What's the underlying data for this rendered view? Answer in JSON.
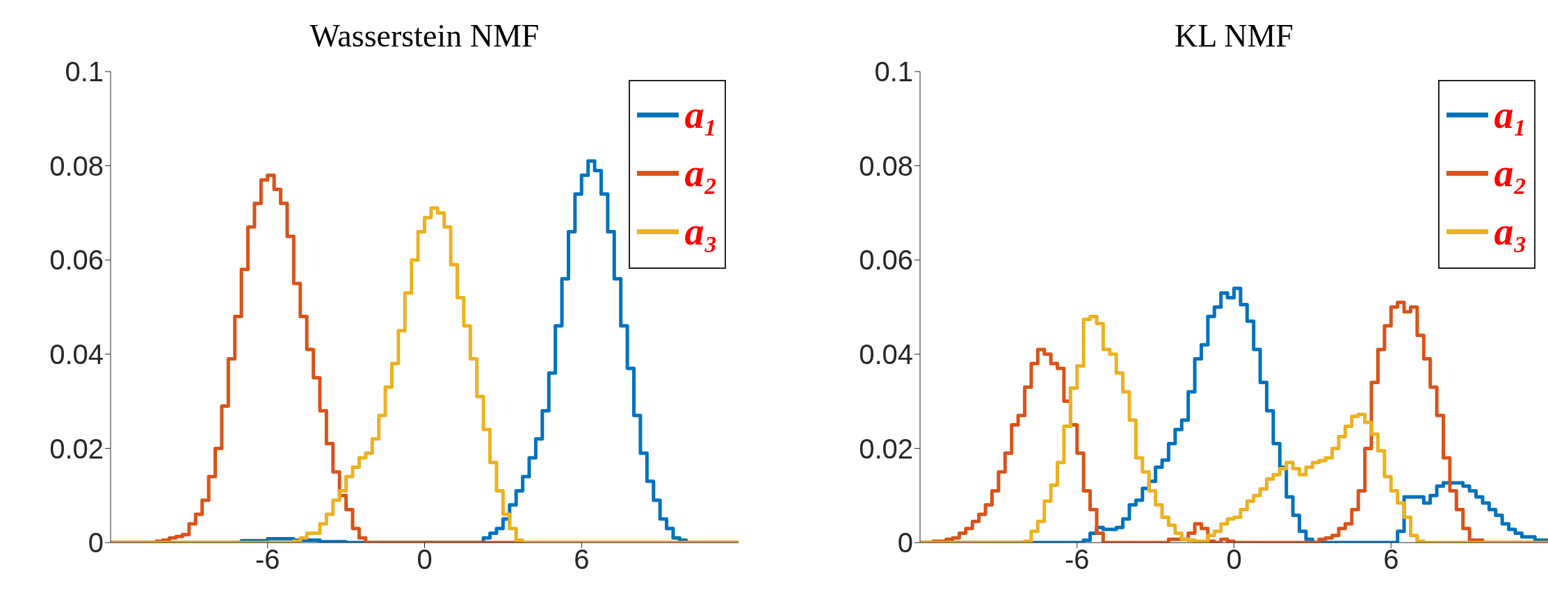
{
  "chart_data": [
    {
      "type": "step",
      "title": "Wasserstein NMF",
      "xlim": [
        -12,
        12
      ],
      "xticks": [
        -6,
        0,
        6
      ],
      "ylim": [
        0,
        0.1
      ],
      "yticks": [
        0,
        0.02,
        0.04,
        0.06,
        0.08,
        0.1
      ],
      "grid": false,
      "legend": "top right",
      "series": [
        {
          "name": "a₁",
          "color": "#0072bd",
          "x": [
            -12,
            -8,
            -7,
            -6,
            -5,
            -4,
            -3,
            2.25,
            2.5,
            2.75,
            3,
            3.25,
            3.5,
            3.75,
            4,
            4.25,
            4.5,
            4.75,
            5,
            5.25,
            5.5,
            5.75,
            6,
            6.25,
            6.5,
            6.75,
            7,
            7.25,
            7.5,
            7.75,
            8,
            8.25,
            8.5,
            8.75,
            9,
            9.25,
            9.5,
            9.75,
            10,
            12
          ],
          "values": [
            0,
            0,
            0.0004,
            0.0008,
            0.0005,
            0.0002,
            0,
            0.001,
            0.002,
            0.003,
            0.005,
            0.008,
            0.011,
            0.014,
            0.018,
            0.022,
            0.028,
            0.036,
            0.046,
            0.056,
            0.066,
            0.074,
            0.078,
            0.081,
            0.079,
            0.074,
            0.066,
            0.056,
            0.046,
            0.037,
            0.027,
            0.019,
            0.013,
            0.009,
            0.005,
            0.003,
            0.001,
            0.0005,
            0,
            0
          ]
        },
        {
          "name": "a₂",
          "color": "#d95319",
          "x": [
            -12,
            -10.25,
            -10,
            -9.75,
            -9.5,
            -9.25,
            -9,
            -8.75,
            -8.5,
            -8.25,
            -8,
            -7.75,
            -7.5,
            -7.25,
            -7,
            -6.75,
            -6.5,
            -6.25,
            -6,
            -5.75,
            -5.5,
            -5.25,
            -5,
            -4.75,
            -4.5,
            -4.25,
            -4,
            -3.75,
            -3.5,
            -3.25,
            -3,
            -2.75,
            -2.5,
            -2.25,
            12
          ],
          "values": [
            0,
            0.0003,
            0.0005,
            0.001,
            0.0013,
            0.0017,
            0.004,
            0.006,
            0.009,
            0.014,
            0.02,
            0.029,
            0.039,
            0.048,
            0.058,
            0.067,
            0.072,
            0.077,
            0.078,
            0.075,
            0.072,
            0.065,
            0.055,
            0.048,
            0.041,
            0.035,
            0.028,
            0.021,
            0.015,
            0.01,
            0.007,
            0.003,
            0.001,
            0,
            0
          ]
        },
        {
          "name": "a₃",
          "color": "#edb120",
          "x": [
            -12,
            -5,
            -4.75,
            -4.5,
            -4.25,
            -4,
            -3.75,
            -3.5,
            -3.25,
            -3,
            -2.75,
            -2.5,
            -2.25,
            -2,
            -1.75,
            -1.5,
            -1.25,
            -1,
            -0.75,
            -0.5,
            -0.25,
            0,
            0.25,
            0.5,
            0.75,
            1,
            1.25,
            1.5,
            1.75,
            2,
            2.25,
            2.5,
            2.75,
            3,
            3.25,
            3.5,
            3.75,
            12
          ],
          "values": [
            0,
            0.0003,
            0.001,
            0.002,
            0.002,
            0.004,
            0.006,
            0.009,
            0.011,
            0.014,
            0.016,
            0.018,
            0.019,
            0.022,
            0.027,
            0.033,
            0.038,
            0.045,
            0.053,
            0.06,
            0.066,
            0.069,
            0.071,
            0.07,
            0.067,
            0.059,
            0.052,
            0.046,
            0.039,
            0.031,
            0.024,
            0.017,
            0.011,
            0.006,
            0.003,
            0.0005,
            0,
            0
          ]
        }
      ]
    },
    {
      "type": "step",
      "title": "KL NMF",
      "xlim": [
        -12,
        12
      ],
      "xticks": [
        -6,
        0,
        6
      ],
      "ylim": [
        0,
        0.1
      ],
      "yticks": [
        0,
        0.02,
        0.04,
        0.06,
        0.08,
        0.1
      ],
      "grid": false,
      "legend": "top right",
      "series": [
        {
          "name": "a₁",
          "color": "#0072bd",
          "x": [
            -12,
            -5.75,
            -5.5,
            -5.25,
            -5,
            -4.75,
            -4.5,
            -4.25,
            -4,
            -3.75,
            -3.5,
            -3.25,
            -3,
            -2.75,
            -2.5,
            -2.25,
            -2,
            -1.75,
            -1.5,
            -1.25,
            -1,
            -0.75,
            -0.5,
            -0.25,
            0,
            0.25,
            0.5,
            0.75,
            1,
            1.25,
            1.5,
            1.75,
            2,
            2.25,
            2.5,
            2.75,
            3,
            6,
            6.25,
            6.5,
            6.75,
            7,
            7.25,
            7.5,
            7.75,
            8,
            8.25,
            8.5,
            8.75,
            9,
            9.25,
            9.5,
            9.75,
            10,
            10.25,
            10.5,
            10.75,
            11,
            11.5,
            12
          ],
          "values": [
            0,
            0.0005,
            0.002,
            0.0032,
            0.0028,
            0.0028,
            0.0032,
            0.005,
            0.008,
            0.009,
            0.0115,
            0.013,
            0.016,
            0.0175,
            0.021,
            0.024,
            0.026,
            0.032,
            0.039,
            0.042,
            0.048,
            0.05,
            0.053,
            0.052,
            0.054,
            0.0505,
            0.047,
            0.041,
            0.034,
            0.028,
            0.021,
            0.016,
            0.0097,
            0.0058,
            0.0024,
            0.0007,
            0,
            0,
            0.0024,
            0.0097,
            0.0097,
            0.0097,
            0.0084,
            0.01,
            0.012,
            0.0127,
            0.0127,
            0.0127,
            0.012,
            0.011,
            0.0097,
            0.0084,
            0.007,
            0.0058,
            0.004,
            0.0028,
            0.002,
            0.0012,
            0.0005,
            0
          ]
        },
        {
          "name": "a₂",
          "color": "#d95319",
          "x": [
            -12,
            -11.5,
            -11,
            -10.75,
            -10.5,
            -10.25,
            -10,
            -9.75,
            -9.5,
            -9.25,
            -9,
            -8.75,
            -8.5,
            -8.25,
            -8,
            -7.75,
            -7.5,
            -7.25,
            -7,
            -6.75,
            -6.5,
            -6.25,
            -6,
            -5.75,
            -5.5,
            -5.25,
            -5,
            -2.75,
            -2.5,
            -2,
            -1.75,
            -1.5,
            -1.25,
            -1,
            -0.75,
            -0.5,
            -0.25,
            0,
            3,
            3.25,
            3.5,
            3.75,
            4,
            4.25,
            4.5,
            4.75,
            5,
            5.25,
            5.5,
            5.75,
            6,
            6.25,
            6.5,
            6.75,
            7,
            7.25,
            7.5,
            7.75,
            8,
            8.25,
            8.5,
            8.75,
            9,
            9.5,
            12
          ],
          "values": [
            0,
            0.0003,
            0.0007,
            0.001,
            0.002,
            0.003,
            0.0045,
            0.006,
            0.008,
            0.011,
            0.015,
            0.019,
            0.025,
            0.027,
            0.033,
            0.038,
            0.041,
            0.04,
            0.038,
            0.037,
            0.03,
            0.025,
            0.019,
            0.011,
            0.007,
            0.002,
            0,
            0,
            0.0007,
            0.0007,
            0.002,
            0.004,
            0.003,
            0.0003,
            0,
            0.0007,
            0.0003,
            0,
            0,
            0.0007,
            0.001,
            0.0015,
            0.003,
            0.004,
            0.007,
            0.011,
            0.02,
            0.034,
            0.041,
            0.046,
            0.05,
            0.051,
            0.049,
            0.05,
            0.044,
            0.039,
            0.033,
            0.027,
            0.018,
            0.011,
            0.007,
            0.003,
            0.0005,
            0,
            0
          ]
        },
        {
          "name": "a₃",
          "color": "#edb120",
          "x": [
            -12,
            -8,
            -7.75,
            -7.5,
            -7.25,
            -7,
            -6.75,
            -6.5,
            -6.25,
            -6,
            -5.75,
            -5.5,
            -5.25,
            -5,
            -4.75,
            -4.5,
            -4.25,
            -4,
            -3.75,
            -3.5,
            -3.25,
            -3,
            -2.75,
            -2.5,
            -2.25,
            -2,
            -1.75,
            -1.5,
            -1.25,
            -1,
            -0.75,
            -0.5,
            -0.25,
            0,
            0.25,
            0.5,
            0.75,
            1,
            1.25,
            1.5,
            1.75,
            2,
            2.25,
            2.5,
            2.75,
            3,
            3.25,
            3.5,
            3.75,
            4,
            4.25,
            4.5,
            4.75,
            5,
            5.25,
            5.5,
            5.75,
            6,
            6.25,
            6.5,
            6.75,
            7,
            7.25,
            12
          ],
          "values": [
            0,
            0.0003,
            0.0024,
            0.0045,
            0.0088,
            0.0122,
            0.017,
            0.0247,
            0.0328,
            0.0375,
            0.0474,
            0.048,
            0.0465,
            0.041,
            0.04,
            0.036,
            0.032,
            0.026,
            0.018,
            0.015,
            0.011,
            0.008,
            0.0054,
            0.0037,
            0.002,
            0.0007,
            0.0005,
            0.0003,
            0.0003,
            0.0015,
            0.0024,
            0.004,
            0.005,
            0.0054,
            0.007,
            0.0088,
            0.01,
            0.0114,
            0.0135,
            0.0144,
            0.0157,
            0.017,
            0.0157,
            0.0144,
            0.016,
            0.017,
            0.0174,
            0.018,
            0.02,
            0.0225,
            0.0247,
            0.0268,
            0.0272,
            0.0255,
            0.023,
            0.0195,
            0.014,
            0.011,
            0.0084,
            0.0054,
            0.0015,
            0.0003,
            0,
            0
          ]
        }
      ]
    }
  ]
}
